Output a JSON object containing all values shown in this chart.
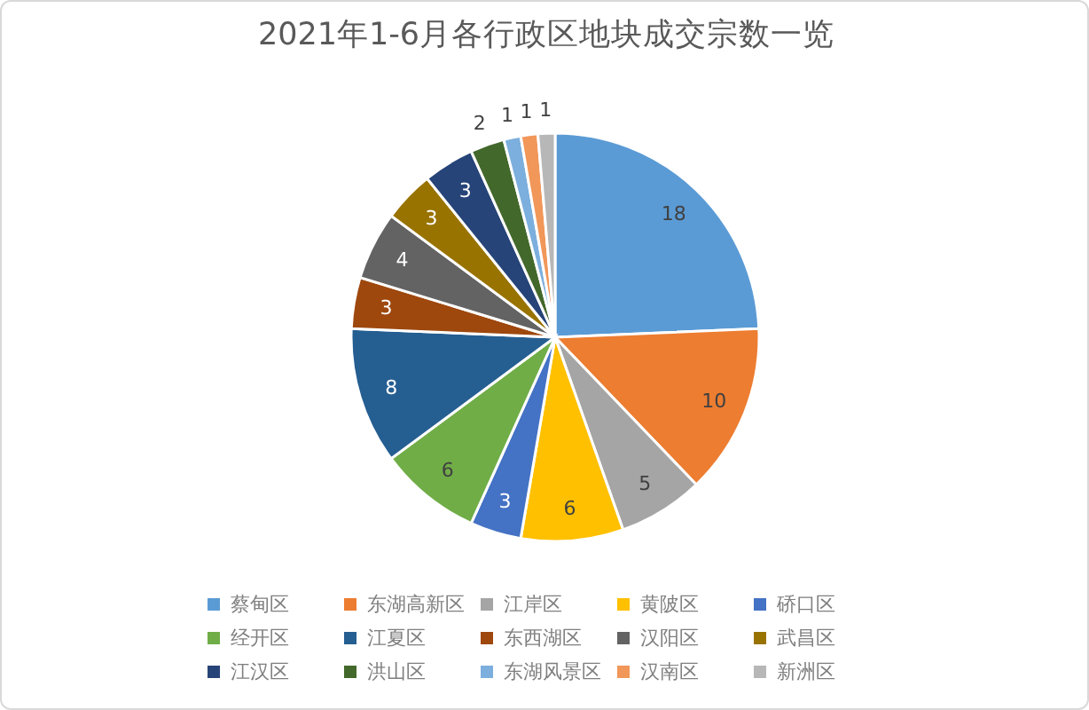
{
  "chart_data": {
    "type": "pie",
    "title": "2021年1-6月各行政区地块成交宗数一览",
    "categories": [
      "蔡甸区",
      "东湖高新区",
      "江岸区",
      "黄陂区",
      "硚口区",
      "经开区",
      "江夏区",
      "东西湖区",
      "汉阳区",
      "武昌区",
      "江汉区",
      "洪山区",
      "东湖风景区",
      "汉南区",
      "新洲区"
    ],
    "values": [
      18,
      10,
      5,
      6,
      3,
      6,
      8,
      3,
      4,
      3,
      3,
      2,
      1,
      1,
      1
    ],
    "colors": [
      "#5b9bd5",
      "#ed7d31",
      "#a5a5a5",
      "#ffc000",
      "#4472c4",
      "#70ad47",
      "#255e91",
      "#9e480e",
      "#636363",
      "#997300",
      "#264478",
      "#43682b",
      "#7cafdd",
      "#f1975a",
      "#b7b7b7"
    ],
    "data_labels": true,
    "legend": "bottom"
  }
}
